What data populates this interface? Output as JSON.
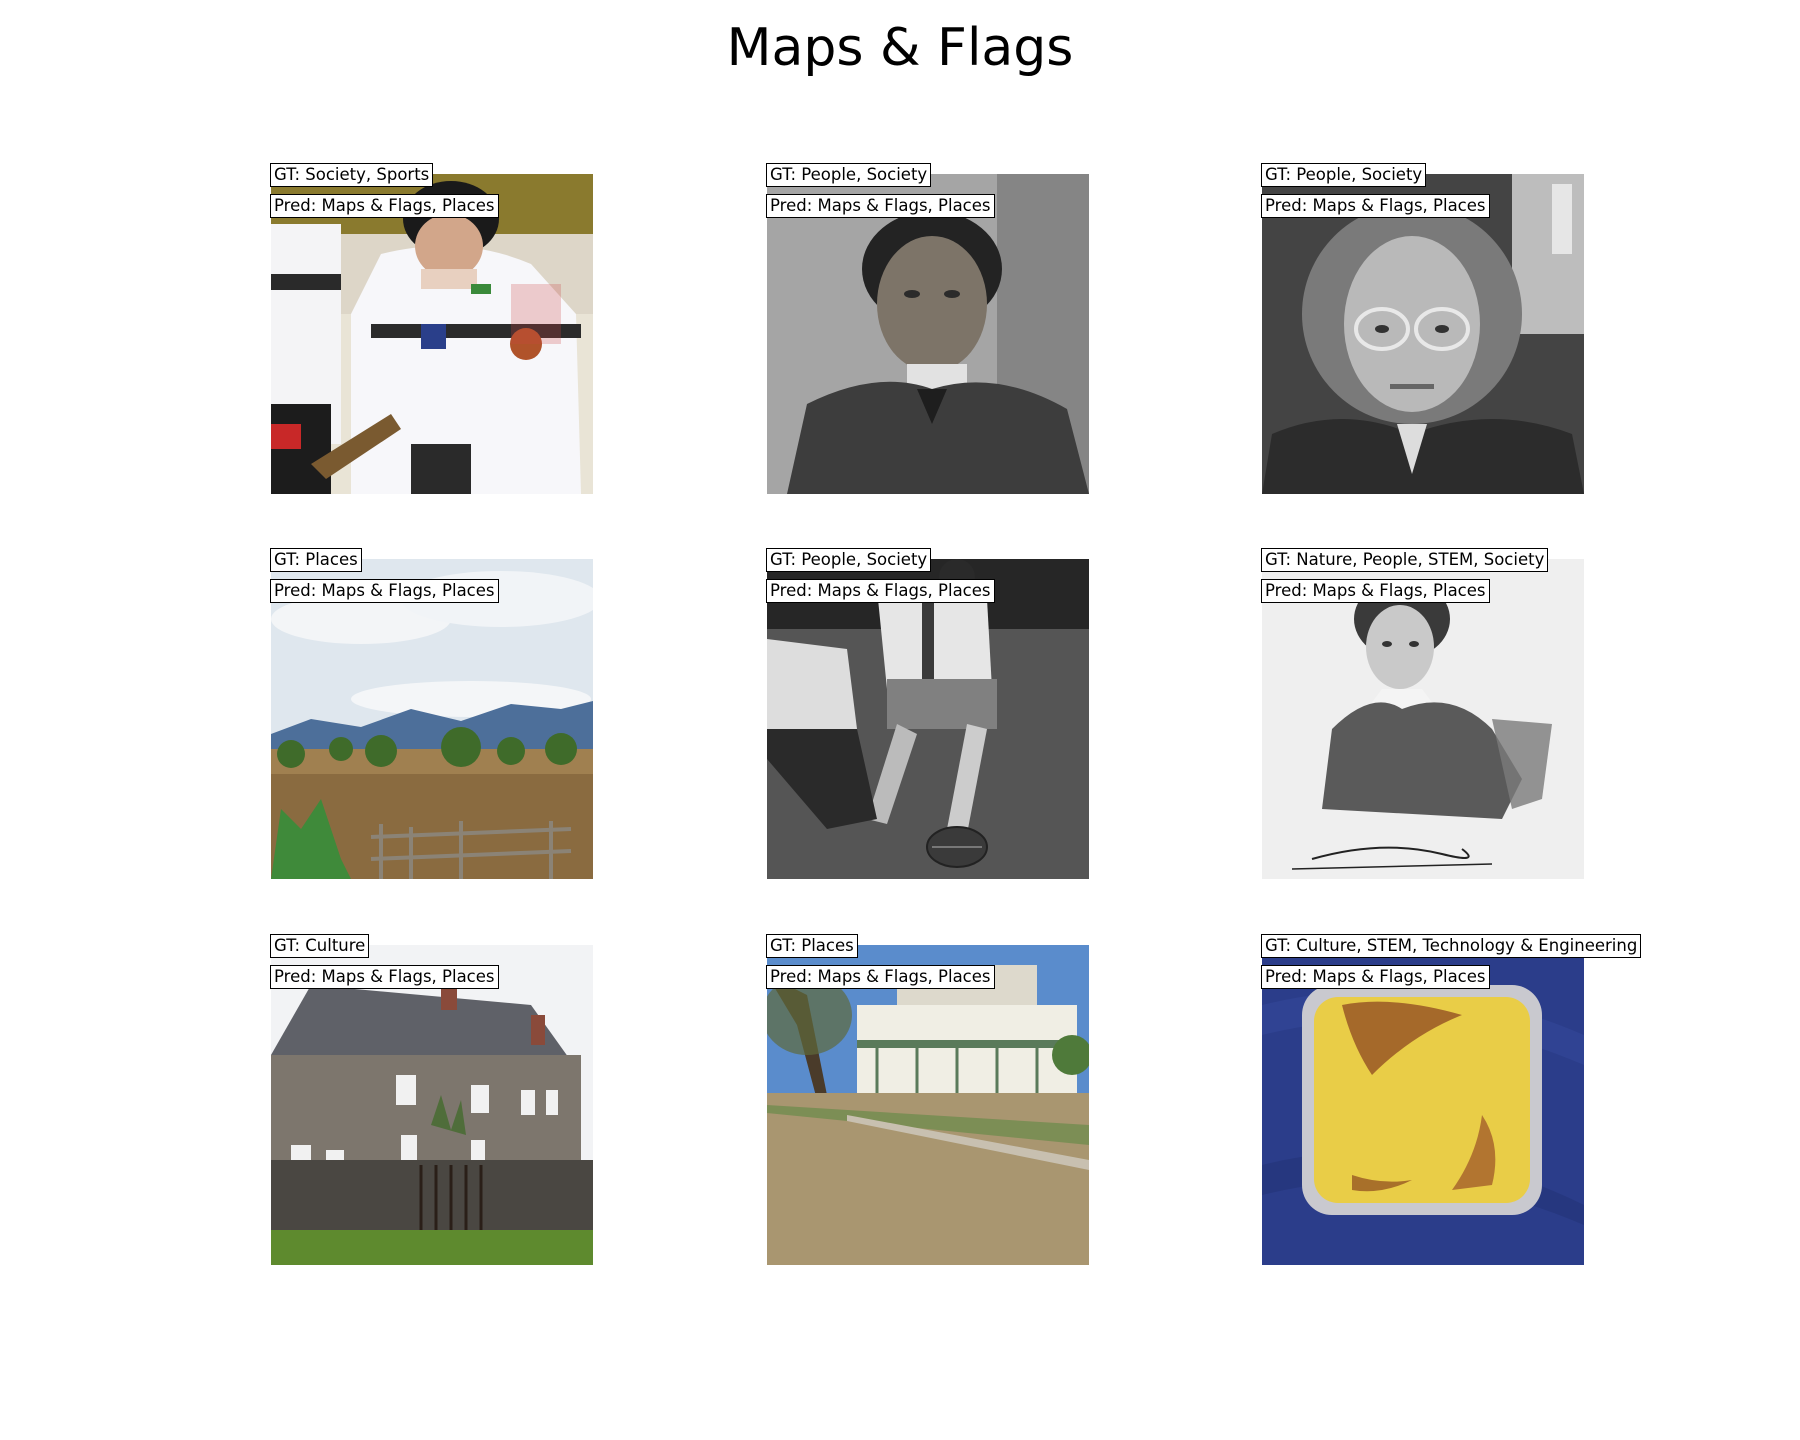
{
  "title": "Maps & Flags",
  "panels": [
    {
      "gt": "GT: Society, Sports",
      "pred": "Pred: Maps & Flags, Places",
      "scene": "ice hockey players in white jerseys"
    },
    {
      "gt": "GT: People, Society",
      "pred": "Pred: Maps & Flags, Places",
      "scene": "black and white portrait of a young man in a suit"
    },
    {
      "gt": "GT: People, Society",
      "pred": "Pred: Maps & Flags, Places",
      "scene": "black and white portrait of a woman with glasses"
    },
    {
      "gt": "GT: Places",
      "pred": "Pred: Maps & Flags, Places",
      "scene": "rural field with fence, trees and mountains"
    },
    {
      "gt": "GT: People, Society",
      "pred": "Pred: Maps & Flags, Places",
      "scene": "black and white photo of football players kicking a ball"
    },
    {
      "gt": "GT: Nature, People, STEM, Society",
      "pred": "Pred: Maps & Flags, Places",
      "scene": "engraved portrait of a man with a signature"
    },
    {
      "gt": "GT: Culture",
      "pred": "Pred: Maps & Flags, Places",
      "scene": "stone cottage with chimneys behind a stone wall"
    },
    {
      "gt": "GT: Places",
      "pred": "Pred: Maps & Flags, Places",
      "scene": "two-storey building with porches behind a dry lawn"
    },
    {
      "gt": "GT: Culture, STEM, Technology & Engineering",
      "pred": "Pred: Maps & Flags, Places",
      "scene": "baked custard in a foil tray on a blue cloth"
    }
  ]
}
